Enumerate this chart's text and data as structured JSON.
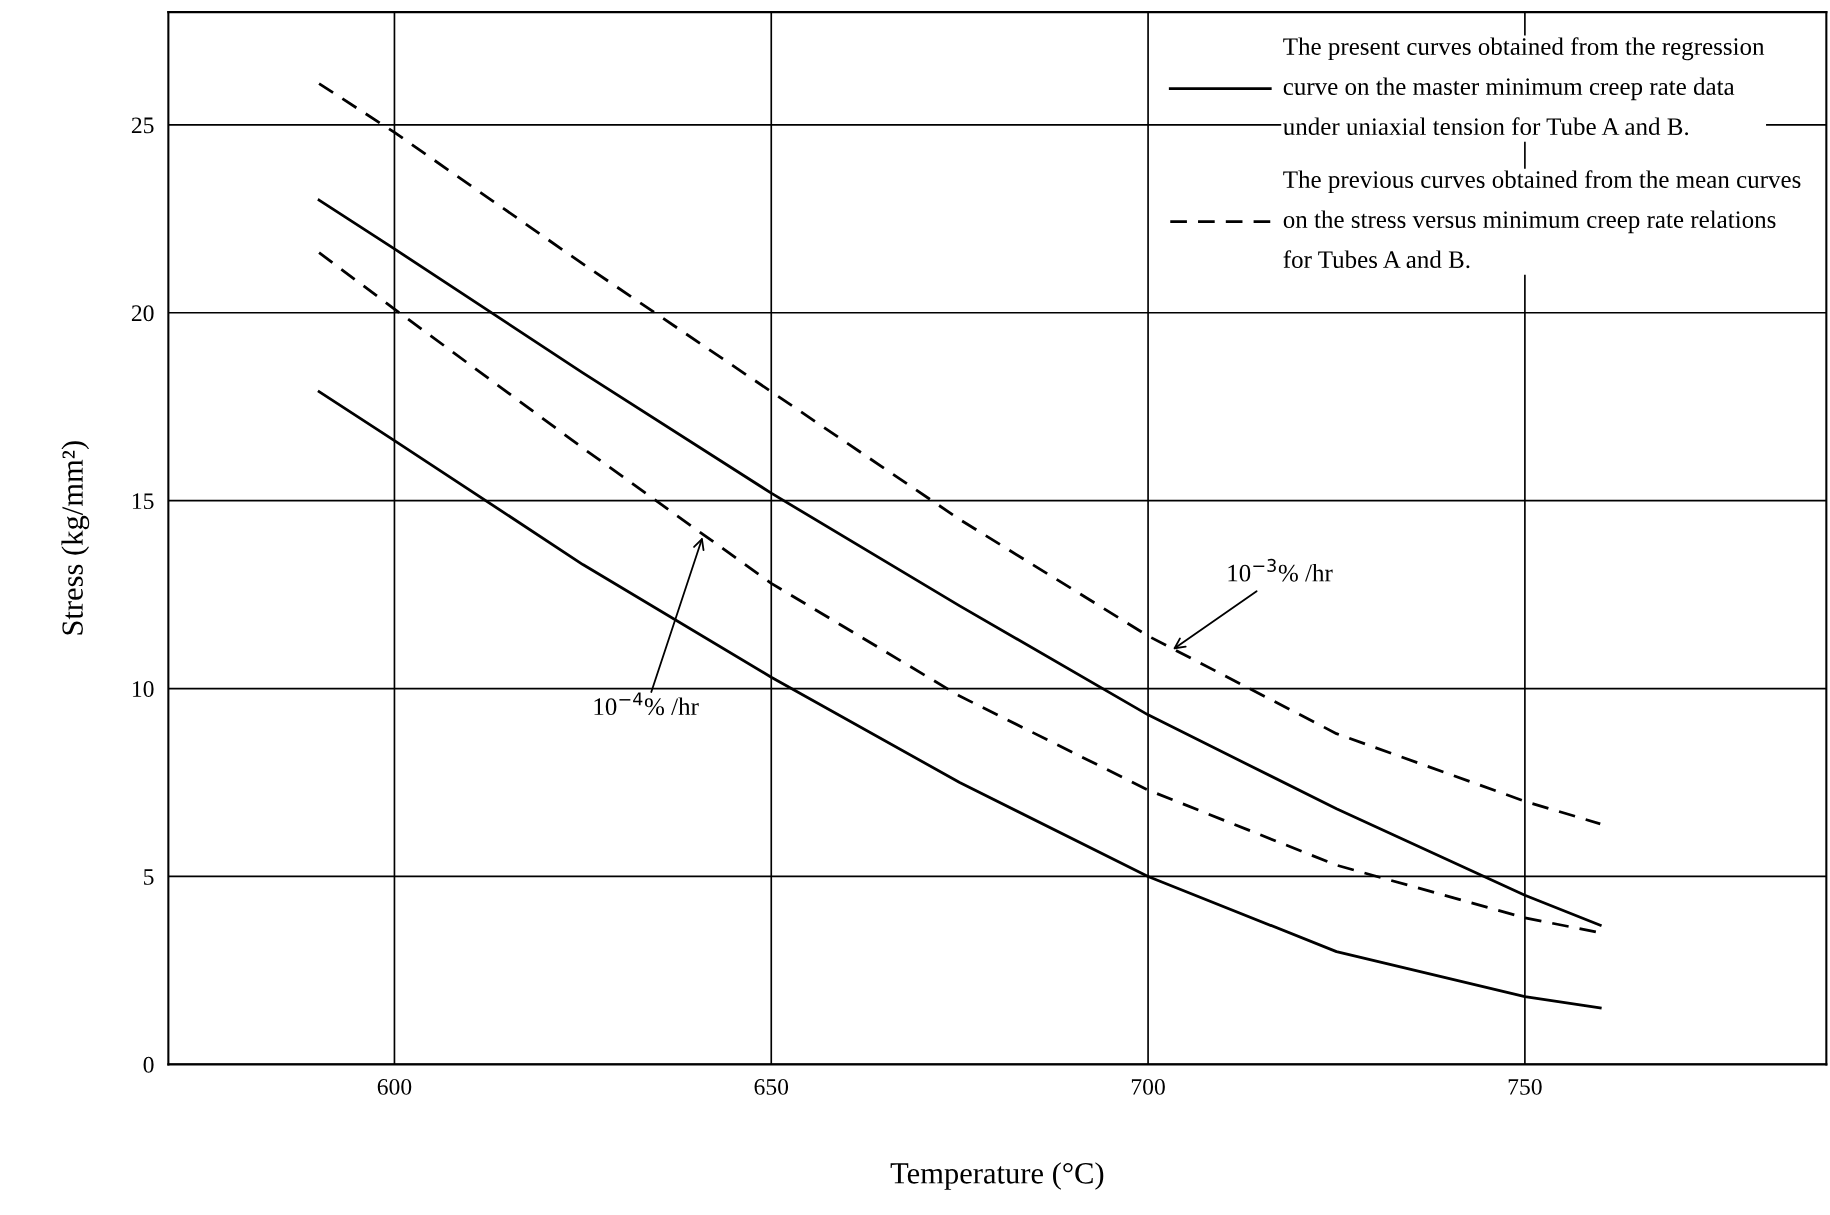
{
  "chart_data": {
    "type": "line",
    "xlabel": "Temperature (°C)",
    "ylabel": "Stress (kg/mm²)",
    "xlim": [
      570,
      790
    ],
    "xticks": [
      600,
      650,
      700,
      750
    ],
    "ylim": [
      0,
      28
    ],
    "yticks": [
      0,
      5,
      10,
      15,
      20,
      25
    ],
    "grid": true,
    "legend": "top right",
    "marker": "none",
    "x": [
      590,
      600,
      625,
      650,
      675,
      700,
      725,
      750,
      760
    ],
    "series": [
      {
        "name": "The present curves obtained from the regression\ncurve on the master minimum creep rate data\nunder uniaxial tension for Tube A and B.",
        "color": "#000000",
        "line_style": "solid",
        "values": [
          23.0,
          21.7,
          18.4,
          15.2,
          12.2,
          9.3,
          6.8,
          4.5,
          3.7
        ]
      },
      {
        "color": "#000000",
        "line_style": "solid",
        "values": [
          17.9,
          16.6,
          13.3,
          10.3,
          7.5,
          5.0,
          3.0,
          1.8,
          1.5
        ]
      },
      {
        "name": "The previous curves obtained from the mean curves\non the stress versus minimum creep rate relations\nfor Tubes A and B.",
        "color": "#000000",
        "line_style": "dashed",
        "values": [
          26.1,
          24.8,
          21.3,
          17.9,
          14.5,
          11.4,
          8.8,
          7.0,
          6.4
        ]
      },
      {
        "color": "#000000",
        "line_style": "dashed",
        "values": [
          21.6,
          20.1,
          16.4,
          12.8,
          9.8,
          7.3,
          5.3,
          3.9,
          3.5
        ]
      }
    ],
    "annotations": [
      {
        "text": "10$^{−3}$% /hr",
        "x": 703,
        "y": 11.0
      },
      {
        "text": "10$^{−4}$% /hr",
        "x": 641,
        "y": 14.1
      }
    ]
  }
}
